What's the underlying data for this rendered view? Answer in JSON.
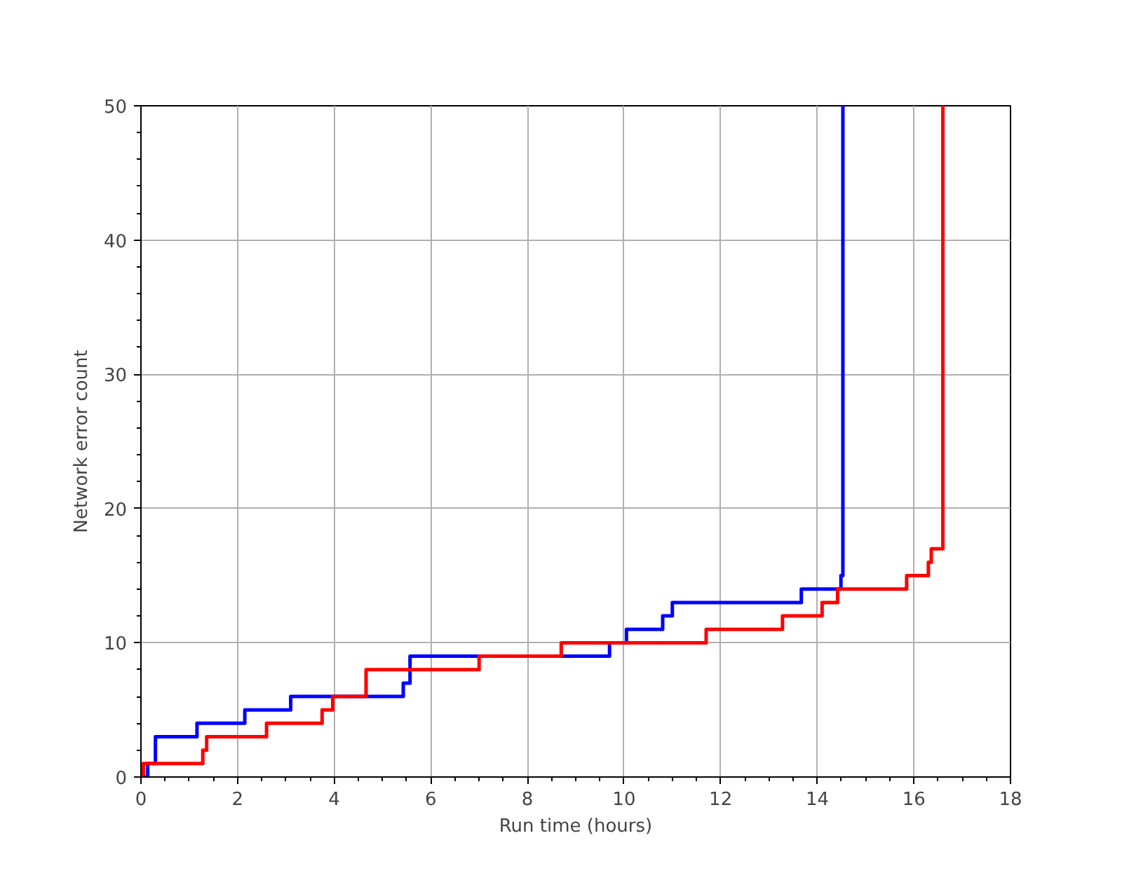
{
  "chart_data": {
    "type": "step",
    "xlabel": "Run time (hours)",
    "ylabel": "Network error count",
    "xlim": [
      0,
      18
    ],
    "ylim": [
      0,
      50
    ],
    "xticks": [
      0,
      2,
      4,
      6,
      8,
      10,
      12,
      14,
      16,
      18
    ],
    "yticks": [
      0,
      10,
      20,
      30,
      40,
      50
    ],
    "grid": true,
    "line_style": "solid",
    "marker": "none",
    "series": [
      {
        "color": "#0000ff",
        "x": [
          0,
          0.14,
          0.3,
          1.16,
          2.15,
          3.1,
          5.43,
          5.57,
          9.7,
          10.05,
          10.8,
          11.0,
          13.67,
          14.49,
          14.53
        ],
        "values": [
          0,
          1,
          3,
          4,
          5,
          6,
          7,
          9,
          10,
          11,
          12,
          13,
          14,
          15,
          50
        ]
      },
      {
        "color": "#ff0000",
        "x": [
          0,
          0.05,
          1.28,
          1.36,
          2.6,
          3.75,
          3.97,
          4.66,
          7.0,
          8.7,
          11.7,
          13.28,
          14.1,
          14.42,
          15.85,
          16.3,
          16.36,
          16.6
        ],
        "values": [
          0,
          1,
          2,
          3,
          4,
          5,
          6,
          8,
          9,
          10,
          11,
          12,
          13,
          14,
          15,
          16,
          17,
          50
        ]
      }
    ]
  }
}
